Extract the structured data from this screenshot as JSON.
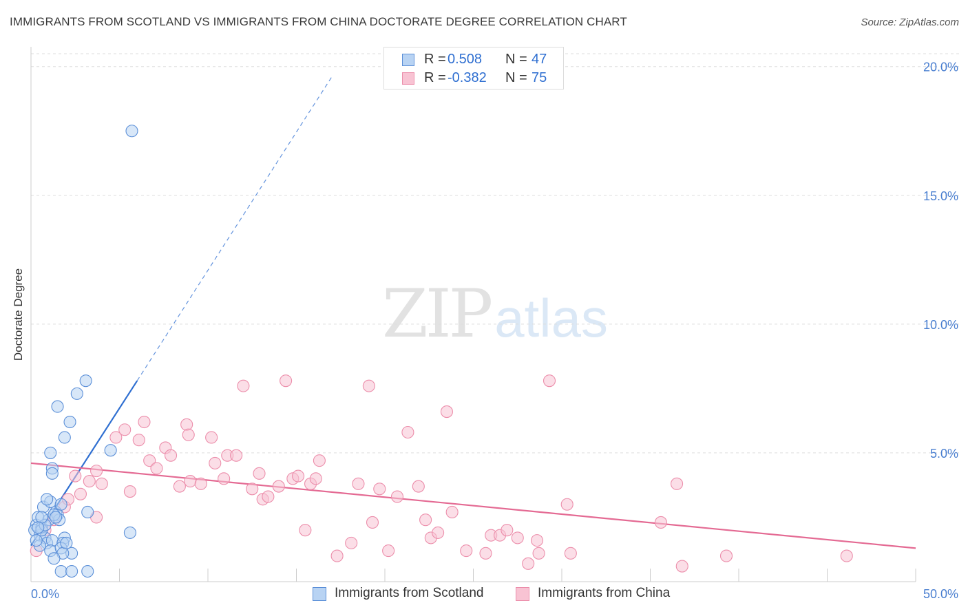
{
  "header": {
    "title": "IMMIGRANTS FROM SCOTLAND VS IMMIGRANTS FROM CHINA DOCTORATE DEGREE CORRELATION CHART",
    "source": "Source: ZipAtlas.com"
  },
  "watermark": {
    "zip": "ZIP",
    "atlas": "atlas"
  },
  "colors": {
    "scotland_fill": "#b8d3f3",
    "scotland_stroke": "#5b8fd8",
    "scotland_line": "#2f6fd1",
    "china_fill": "#f8c3d3",
    "china_stroke": "#ec8eab",
    "china_line": "#e46a93",
    "grid": "#dddddd",
    "tick_label": "#4a7fd0"
  },
  "stats": [
    {
      "r_label": "R =",
      "r_value": "0.508",
      "n_label": "N =",
      "n_value": "47"
    },
    {
      "r_label": "R =",
      "r_value": "-0.382",
      "n_label": "N =",
      "n_value": "75"
    }
  ],
  "legend": [
    {
      "label": "Immigrants from Scotland"
    },
    {
      "label": "Immigrants from China"
    }
  ],
  "chart_data": {
    "type": "scatter",
    "title": "IMMIGRANTS FROM SCOTLAND VS IMMIGRANTS FROM CHINA DOCTORATE DEGREE CORRELATION CHART",
    "xlabel": "",
    "ylabel": "Doctorate Degree",
    "xlim": [
      0,
      50
    ],
    "ylim": [
      0,
      20.5
    ],
    "x_tick_labels": [
      {
        "value": 0,
        "label": "0.0%"
      },
      {
        "value": 50,
        "label": "50.0%"
      }
    ],
    "y_tick_labels": [
      {
        "value": 5,
        "label": "5.0%"
      },
      {
        "value": 10,
        "label": "10.0%"
      },
      {
        "value": 15,
        "label": "15.0%"
      },
      {
        "value": 20,
        "label": "20.0%"
      }
    ],
    "series": [
      {
        "name": "Immigrants from Scotland",
        "R": 0.508,
        "N": 47,
        "trend": {
          "x0": 0,
          "y0": 1.4,
          "x1": 6.0,
          "y1": 7.8,
          "dashed_to_x": 17.0,
          "dashed_to_y": 19.6
        },
        "points": [
          [
            0.3,
            2.2
          ],
          [
            0.2,
            2.0
          ],
          [
            0.5,
            1.8
          ],
          [
            0.4,
            2.5
          ],
          [
            0.6,
            2.1
          ],
          [
            0.8,
            1.7
          ],
          [
            0.9,
            1.5
          ],
          [
            1.0,
            2.4
          ],
          [
            0.7,
            2.9
          ],
          [
            1.1,
            3.1
          ],
          [
            1.2,
            1.6
          ],
          [
            1.4,
            2.7
          ],
          [
            1.5,
            2.6
          ],
          [
            1.6,
            2.4
          ],
          [
            0.9,
            3.2
          ],
          [
            1.7,
            3.0
          ],
          [
            1.9,
            1.7
          ],
          [
            1.8,
            1.5
          ],
          [
            1.3,
            2.6
          ],
          [
            1.1,
            1.2
          ],
          [
            1.7,
            1.3
          ],
          [
            2.3,
            1.1
          ],
          [
            2.6,
            7.3
          ],
          [
            3.1,
            7.8
          ],
          [
            1.5,
            6.8
          ],
          [
            2.2,
            6.2
          ],
          [
            1.9,
            5.6
          ],
          [
            1.1,
            5.0
          ],
          [
            1.2,
            4.4
          ],
          [
            1.2,
            4.2
          ],
          [
            3.2,
            2.7
          ],
          [
            4.5,
            5.1
          ],
          [
            5.6,
            1.9
          ],
          [
            5.7,
            17.5
          ],
          [
            1.8,
            1.1
          ],
          [
            1.3,
            0.9
          ],
          [
            1.7,
            0.4
          ],
          [
            2.3,
            0.4
          ],
          [
            3.2,
            0.4
          ],
          [
            0.5,
            1.4
          ],
          [
            0.6,
            2.0
          ],
          [
            0.8,
            2.2
          ],
          [
            0.3,
            1.6
          ],
          [
            0.6,
            2.5
          ],
          [
            1.4,
            2.5
          ],
          [
            2.0,
            1.5
          ],
          [
            0.4,
            2.1
          ]
        ]
      },
      {
        "name": "Immigrants from China",
        "R": -0.382,
        "N": 75,
        "trend": {
          "x0": 0,
          "y0": 4.6,
          "x1": 50,
          "y1": 1.3
        },
        "points": [
          [
            0.3,
            1.2
          ],
          [
            0.8,
            2.0
          ],
          [
            1.3,
            2.4
          ],
          [
            1.9,
            2.9
          ],
          [
            2.1,
            3.2
          ],
          [
            2.5,
            4.1
          ],
          [
            2.8,
            3.4
          ],
          [
            3.3,
            3.9
          ],
          [
            3.7,
            2.5
          ],
          [
            3.7,
            4.3
          ],
          [
            4.0,
            3.8
          ],
          [
            4.8,
            5.6
          ],
          [
            5.3,
            5.9
          ],
          [
            5.6,
            3.5
          ],
          [
            6.1,
            5.5
          ],
          [
            6.4,
            6.2
          ],
          [
            6.7,
            4.7
          ],
          [
            7.1,
            4.4
          ],
          [
            7.6,
            5.2
          ],
          [
            7.9,
            4.9
          ],
          [
            8.4,
            3.7
          ],
          [
            8.8,
            6.1
          ],
          [
            8.9,
            5.7
          ],
          [
            9.0,
            3.9
          ],
          [
            9.6,
            3.8
          ],
          [
            10.2,
            5.6
          ],
          [
            10.4,
            4.6
          ],
          [
            10.9,
            4.0
          ],
          [
            11.1,
            4.9
          ],
          [
            11.6,
            4.9
          ],
          [
            12.0,
            7.6
          ],
          [
            12.5,
            3.6
          ],
          [
            12.9,
            4.2
          ],
          [
            13.1,
            3.2
          ],
          [
            13.4,
            3.3
          ],
          [
            14.0,
            3.7
          ],
          [
            14.4,
            7.8
          ],
          [
            14.8,
            4.0
          ],
          [
            15.1,
            4.1
          ],
          [
            15.8,
            3.8
          ],
          [
            16.1,
            4.0
          ],
          [
            16.3,
            4.7
          ],
          [
            15.5,
            2.0
          ],
          [
            17.3,
            1.0
          ],
          [
            18.1,
            1.5
          ],
          [
            18.5,
            3.8
          ],
          [
            19.1,
            7.6
          ],
          [
            19.3,
            2.3
          ],
          [
            19.7,
            3.6
          ],
          [
            20.2,
            1.2
          ],
          [
            20.7,
            3.3
          ],
          [
            21.3,
            5.8
          ],
          [
            21.9,
            3.7
          ],
          [
            22.3,
            2.4
          ],
          [
            22.6,
            1.7
          ],
          [
            23.0,
            1.9
          ],
          [
            23.5,
            6.6
          ],
          [
            23.8,
            2.7
          ],
          [
            24.6,
            1.2
          ],
          [
            25.7,
            1.1
          ],
          [
            26.0,
            1.8
          ],
          [
            26.5,
            1.8
          ],
          [
            26.9,
            2.0
          ],
          [
            27.5,
            1.7
          ],
          [
            28.1,
            0.7
          ],
          [
            28.6,
            1.6
          ],
          [
            28.7,
            1.1
          ],
          [
            29.3,
            7.8
          ],
          [
            30.3,
            3.0
          ],
          [
            30.5,
            1.1
          ],
          [
            35.6,
            2.3
          ],
          [
            36.5,
            3.8
          ],
          [
            36.8,
            0.6
          ],
          [
            39.3,
            1.0
          ],
          [
            46.1,
            1.0
          ]
        ]
      }
    ]
  }
}
